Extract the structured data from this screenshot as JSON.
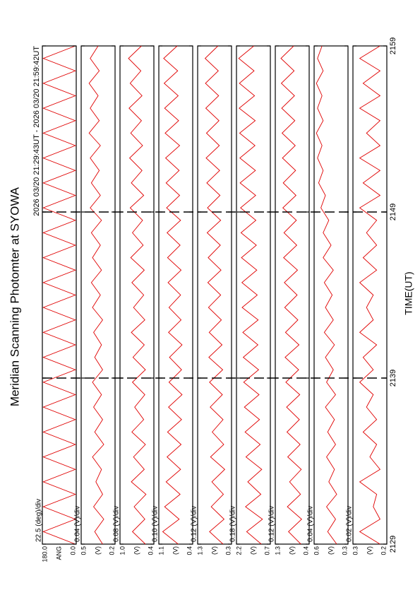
{
  "chart_data": {
    "type": "line",
    "title": "Meridian Scanning Photomter at SYOWA",
    "subtitle": "2026 03/20 21:29:43UT - 2026 03/20 21:59:42UT",
    "xlabel": "TIME(UT)",
    "xlim": [
      2129,
      2159
    ],
    "xticks": [
      2129,
      2139,
      2149,
      2159
    ],
    "grid": true,
    "color": "#e00000",
    "x": [
      2129,
      2129.75,
      2130.5,
      2131.25,
      2132,
      2132.75,
      2133.5,
      2134.25,
      2135,
      2135.75,
      2136.5,
      2137.25,
      2138,
      2138.75,
      2139.5,
      2140.25,
      2141,
      2141.75,
      2142.5,
      2143.25,
      2144,
      2144.75,
      2145.5,
      2146.25,
      2147,
      2147.75,
      2148.5,
      2149.25,
      2150,
      2150.75,
      2151.5,
      2152.25,
      2153,
      2153.75,
      2154.5,
      2155.25,
      2156,
      2156.75,
      2157.5,
      2158.25,
      2159
    ],
    "panels": [
      {
        "scale_label": "22.5 (deg)/div",
        "ylabel": "ANG",
        "ylim": [
          0,
          180
        ],
        "yticks": [
          {
            "value": 0,
            "label": "0.0"
          },
          {
            "value": 180,
            "label": "180.0"
          }
        ],
        "values": [
          5,
          175,
          5,
          175,
          5,
          175,
          5,
          175,
          5,
          175,
          5,
          175,
          5,
          175,
          5,
          175,
          5,
          175,
          5,
          175,
          5,
          175,
          5,
          175,
          5,
          175,
          5,
          175,
          5,
          175,
          5,
          175,
          5,
          175,
          5,
          175,
          5,
          175,
          5,
          175,
          5
        ]
      },
      {
        "scale_label": "0.04 (V)/div",
        "ylabel": "(V)",
        "ylim": [
          0.2,
          0.5
        ],
        "yticks": [
          0.2,
          0.5
        ],
        "values": [
          0.31,
          0.38,
          0.3,
          0.39,
          0.31,
          0.37,
          0.32,
          0.4,
          0.3,
          0.38,
          0.31,
          0.39,
          0.32,
          0.4,
          0.31,
          0.38,
          0.32,
          0.39,
          0.31,
          0.4,
          0.33,
          0.41,
          0.32,
          0.4,
          0.33,
          0.41,
          0.32,
          0.42,
          0.33,
          0.41,
          0.34,
          0.42,
          0.33,
          0.43,
          0.34,
          0.42,
          0.35,
          0.43,
          0.34,
          0.42,
          0.35
        ]
      },
      {
        "scale_label": "0.08 (V)/div",
        "ylabel": "(V)",
        "ylim": [
          0.4,
          1.0
        ],
        "yticks": [
          0.4,
          {
            "value": 1.0,
            "label": "1.0"
          }
        ],
        "values": [
          0.55,
          0.78,
          0.56,
          0.75,
          0.54,
          0.8,
          0.57,
          0.76,
          0.55,
          0.79,
          0.58,
          0.74,
          0.56,
          0.78,
          0.55,
          0.77,
          0.57,
          0.8,
          0.56,
          0.76,
          0.58,
          0.79,
          0.57,
          0.81,
          0.59,
          0.78,
          0.6,
          0.82,
          0.58,
          0.8,
          0.61,
          0.83,
          0.6,
          0.81,
          0.62,
          0.84,
          0.61,
          0.82,
          0.63,
          0.85,
          0.62
        ]
      },
      {
        "scale_label": "0.10 (V)/div",
        "ylabel": "(V)",
        "ylim": [
          0.4,
          1.1
        ],
        "yticks": [
          0.4,
          1.1
        ],
        "values": [
          0.7,
          1.02,
          0.68,
          0.98,
          0.66,
          0.95,
          0.65,
          0.93,
          0.64,
          0.92,
          0.63,
          0.9,
          0.62,
          0.89,
          0.63,
          0.88,
          0.62,
          0.9,
          0.64,
          0.89,
          0.65,
          0.91,
          0.64,
          0.92,
          0.66,
          0.93,
          0.65,
          0.94,
          0.67,
          0.95,
          0.68,
          0.96,
          0.67,
          0.97,
          0.69,
          0.98,
          0.7,
          0.99,
          0.71,
          1.0,
          0.72
        ]
      },
      {
        "scale_label": "0.12 (V)/div",
        "ylabel": "(V)",
        "ylim": [
          0.3,
          1.3
        ],
        "yticks": [
          0.3,
          1.3
        ],
        "values": [
          0.55,
          0.95,
          0.52,
          0.9,
          0.54,
          0.88,
          0.5,
          0.92,
          0.53,
          0.87,
          0.55,
          0.93,
          0.57,
          0.95,
          0.56,
          0.97,
          0.58,
          0.96,
          0.6,
          0.98,
          0.62,
          1.0,
          0.61,
          0.99,
          0.63,
          1.02,
          0.62,
          1.01,
          0.64,
          1.03,
          0.65,
          1.05,
          0.66,
          1.04,
          0.67,
          1.06,
          0.68,
          1.07,
          0.69,
          1.08,
          0.7
        ]
      },
      {
        "scale_label": "0.18 (V)/div",
        "ylabel": "(V)",
        "ylim": [
          0.7,
          2.2
        ],
        "yticks": [
          0.7,
          2.2
        ],
        "values": [
          1.1,
          1.75,
          1.05,
          1.8,
          1.12,
          1.7,
          1.08,
          1.78,
          1.15,
          1.82,
          1.18,
          1.85,
          1.2,
          1.88,
          1.22,
          1.9,
          1.25,
          1.92,
          1.24,
          1.95,
          1.28,
          1.96,
          1.3,
          1.98,
          1.32,
          2.0,
          1.34,
          2.02,
          1.35,
          2.04,
          1.36,
          2.05,
          1.38,
          2.06,
          1.37,
          2.08,
          1.4,
          2.07,
          1.42,
          2.1,
          1.43
        ]
      },
      {
        "scale_label": "0.12 (V)/div",
        "ylabel": "(V)",
        "ylim": [
          0.4,
          1.3
        ],
        "yticks": [
          0.4,
          1.3
        ],
        "values": [
          0.62,
          0.95,
          0.6,
          0.98,
          0.63,
          0.92,
          0.61,
          0.97,
          0.64,
          0.99,
          0.66,
          1.0,
          0.65,
          1.02,
          0.68,
          1.04,
          0.67,
          1.03,
          0.7,
          1.05,
          0.72,
          1.06,
          0.71,
          1.08,
          0.73,
          1.07,
          0.74,
          1.1,
          0.75,
          1.09,
          0.76,
          1.11,
          0.77,
          1.12,
          0.78,
          1.13,
          0.79,
          1.14,
          0.8,
          1.15,
          0.81
        ]
      },
      {
        "scale_label": "0.04 (V)/div",
        "ylabel": "(V)",
        "ylim": [
          0.3,
          0.6
        ],
        "yticks": [
          0.3,
          0.6
        ],
        "values": [
          0.4,
          0.48,
          0.41,
          0.49,
          0.4,
          0.47,
          0.42,
          0.49,
          0.41,
          0.48,
          0.42,
          0.5,
          0.41,
          0.49,
          0.43,
          0.5,
          0.42,
          0.51,
          0.43,
          0.5,
          0.44,
          0.51,
          0.43,
          0.52,
          0.45,
          0.52,
          0.47,
          0.54,
          0.5,
          0.56,
          0.52,
          0.57,
          0.53,
          0.58,
          0.52,
          0.57,
          0.53,
          0.58,
          0.52,
          0.57,
          0.53
        ]
      },
      {
        "scale_label": "0.02 (V)/div",
        "ylabel": "(V)",
        "ylim": [
          0.2,
          0.3
        ],
        "yticks": [
          0.2,
          0.3
        ],
        "values": [
          0.22,
          0.28,
          0.22,
          0.24,
          0.23,
          0.28,
          0.22,
          0.25,
          0.23,
          0.27,
          0.23,
          0.26,
          0.24,
          0.28,
          0.24,
          0.27,
          0.23,
          0.28,
          0.24,
          0.26,
          0.24,
          0.28,
          0.23,
          0.27,
          0.23,
          0.26,
          0.23,
          0.28,
          0.22,
          0.27,
          0.22,
          0.28,
          0.22,
          0.26,
          0.22,
          0.28,
          0.22,
          0.27,
          0.22,
          0.28,
          0.22
        ]
      }
    ]
  }
}
